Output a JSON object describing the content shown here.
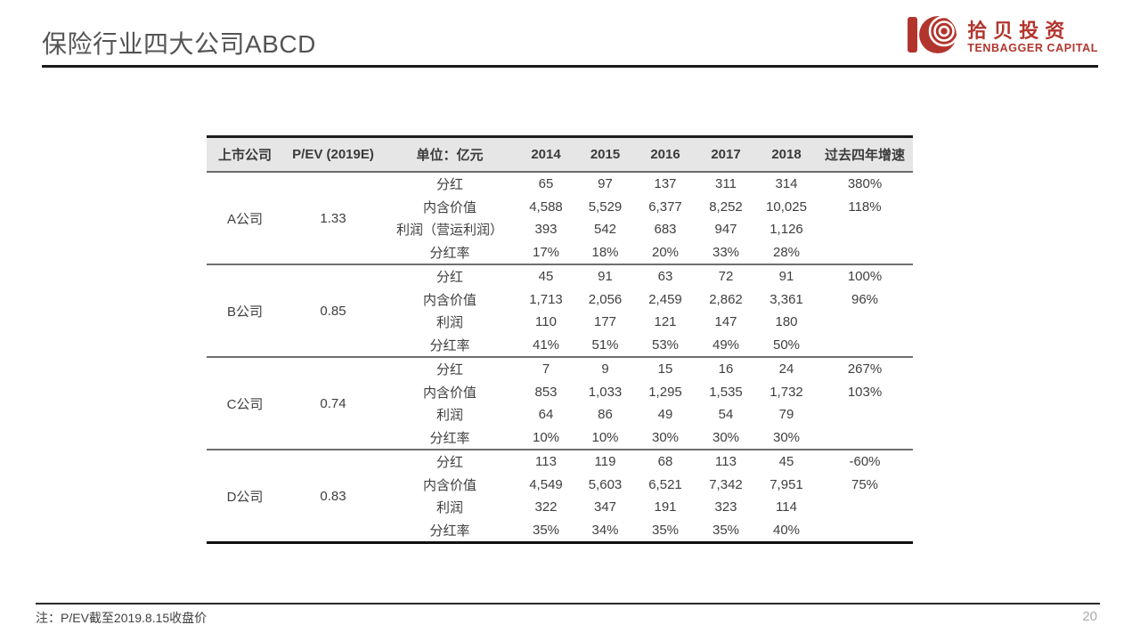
{
  "title": "保险行业四大公司ABCD",
  "logo": {
    "cn": "拾贝投资",
    "en": "TENBAGGER CAPITAL",
    "color": "#b2352d"
  },
  "table": {
    "headers": [
      "上市公司",
      "P/EV (2019E)",
      "单位：亿元",
      "2014",
      "2015",
      "2016",
      "2017",
      "2018",
      "过去四年增速"
    ],
    "groups": [
      {
        "company": "A公司",
        "pev": "1.33",
        "rows": [
          {
            "label": "分红",
            "values": [
              "65",
              "97",
              "137",
              "311",
              "314"
            ],
            "growth": "380%"
          },
          {
            "label": "内含价值",
            "values": [
              "4,588",
              "5,529",
              "6,377",
              "8,252",
              "10,025"
            ],
            "growth": "118%"
          },
          {
            "label": "利润（营运利润）",
            "values": [
              "393",
              "542",
              "683",
              "947",
              "1,126"
            ],
            "growth": ""
          },
          {
            "label": "分红率",
            "values": [
              "17%",
              "18%",
              "20%",
              "33%",
              "28%"
            ],
            "growth": ""
          }
        ]
      },
      {
        "company": "B公司",
        "pev": "0.85",
        "rows": [
          {
            "label": "分红",
            "values": [
              "45",
              "91",
              "63",
              "72",
              "91"
            ],
            "growth": "100%"
          },
          {
            "label": "内含价值",
            "values": [
              "1,713",
              "2,056",
              "2,459",
              "2,862",
              "3,361"
            ],
            "growth": "96%"
          },
          {
            "label": "利润",
            "values": [
              "110",
              "177",
              "121",
              "147",
              "180"
            ],
            "growth": ""
          },
          {
            "label": "分红率",
            "values": [
              "41%",
              "51%",
              "53%",
              "49%",
              "50%"
            ],
            "growth": ""
          }
        ]
      },
      {
        "company": "C公司",
        "pev": "0.74",
        "rows": [
          {
            "label": "分红",
            "values": [
              "7",
              "9",
              "15",
              "16",
              "24"
            ],
            "growth": "267%"
          },
          {
            "label": "内含价值",
            "values": [
              "853",
              "1,033",
              "1,295",
              "1,535",
              "1,732"
            ],
            "growth": "103%"
          },
          {
            "label": "利润",
            "values": [
              "64",
              "86",
              "49",
              "54",
              "79"
            ],
            "growth": ""
          },
          {
            "label": "分红率",
            "values": [
              "10%",
              "10%",
              "30%",
              "30%",
              "30%"
            ],
            "growth": ""
          }
        ]
      },
      {
        "company": "D公司",
        "pev": "0.83",
        "rows": [
          {
            "label": "分红",
            "values": [
              "113",
              "119",
              "68",
              "113",
              "45"
            ],
            "growth": "-60%"
          },
          {
            "label": "内含价值",
            "values": [
              "4,549",
              "5,603",
              "6,521",
              "7,342",
              "7,951"
            ],
            "growth": "75%"
          },
          {
            "label": "利润",
            "values": [
              "322",
              "347",
              "191",
              "323",
              "114"
            ],
            "growth": ""
          },
          {
            "label": "分红率",
            "values": [
              "35%",
              "34%",
              "35%",
              "35%",
              "40%"
            ],
            "growth": ""
          }
        ]
      }
    ]
  },
  "footer": {
    "note": "注：P/EV截至2019.8.15收盘价",
    "page": "20"
  }
}
